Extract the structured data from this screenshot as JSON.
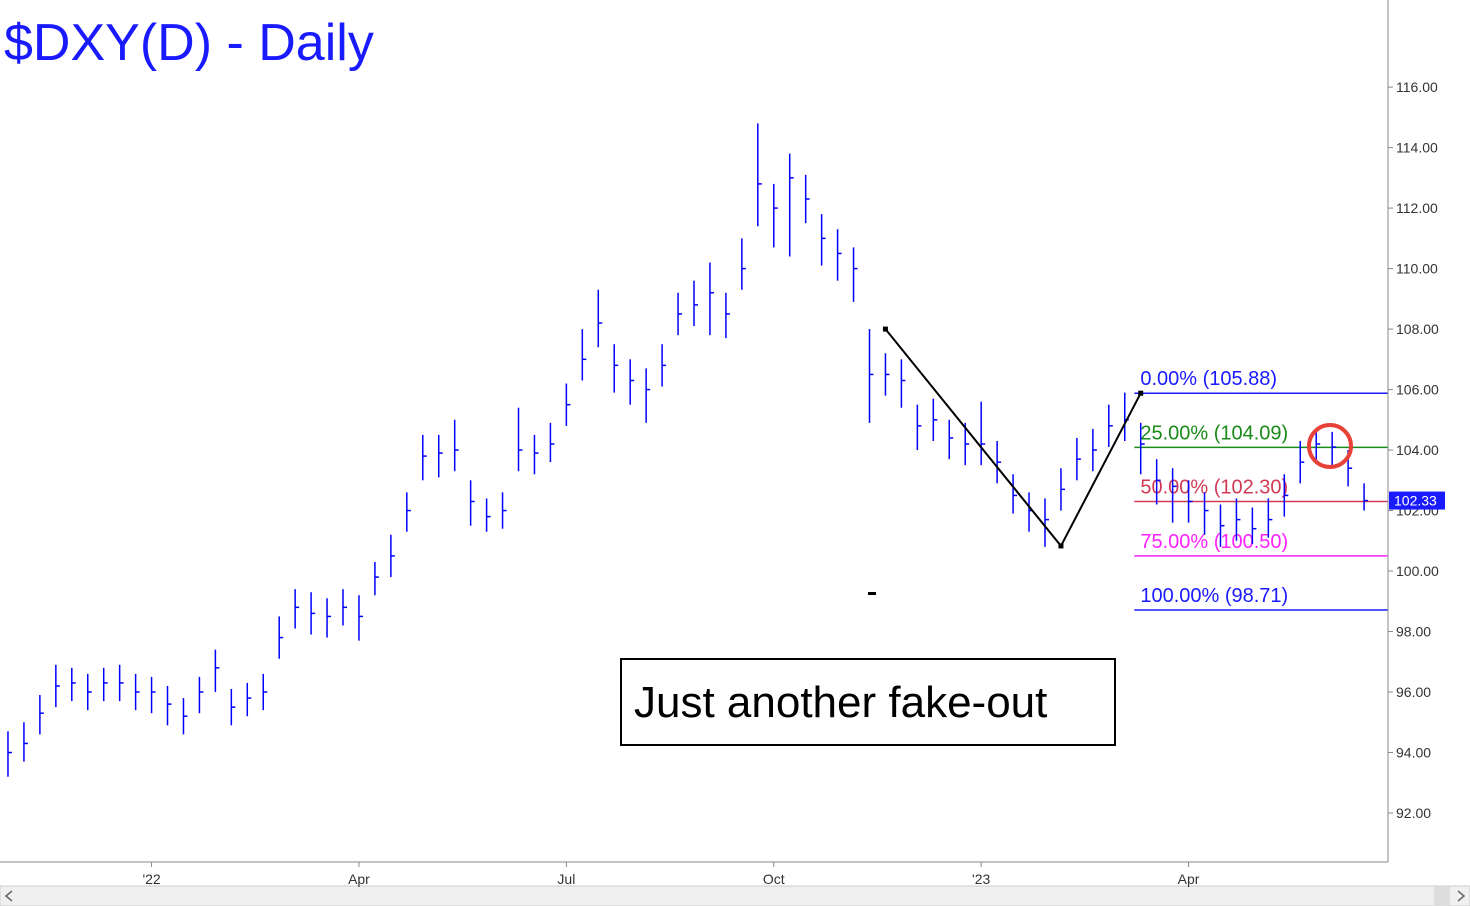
{
  "chart_data": {
    "type": "ohlc",
    "title": "$DXY(D) - Daily",
    "color": "#0000ff",
    "categories": [
      null,
      null,
      null,
      null,
      null,
      null,
      null,
      null,
      null,
      "'22",
      null,
      null,
      null,
      null,
      null,
      null,
      null,
      null,
      null,
      null,
      null,
      null,
      "Apr",
      null,
      null,
      null,
      null,
      null,
      null,
      null,
      null,
      null,
      null,
      null,
      null,
      "Jul",
      null,
      null,
      null,
      null,
      null,
      null,
      null,
      null,
      null,
      null,
      null,
      null,
      "Oct",
      null,
      null,
      null,
      null,
      null,
      null,
      null,
      null,
      null,
      null,
      null,
      null,
      "'23",
      null,
      null,
      null,
      null,
      null,
      null,
      null,
      null,
      null,
      null,
      null,
      null,
      "Apr",
      null,
      null,
      null,
      null,
      null,
      null,
      null,
      null,
      null,
      null,
      null
    ],
    "high": [
      94.7,
      95.0,
      95.9,
      96.9,
      96.8,
      96.6,
      96.8,
      96.9,
      96.6,
      96.5,
      96.2,
      95.8,
      96.5,
      97.4,
      96.1,
      96.3,
      96.6,
      98.5,
      99.4,
      99.3,
      99.1,
      99.4,
      99.2,
      100.3,
      101.2,
      102.6,
      104.5,
      104.5,
      105.0,
      103.0,
      102.4,
      102.6,
      105.4,
      104.5,
      104.9,
      106.2,
      108.0,
      109.3,
      107.5,
      107.0,
      106.7,
      107.5,
      109.2,
      109.6,
      110.2,
      109.2,
      111.0,
      114.8,
      112.8,
      113.8,
      113.1,
      111.8,
      111.3,
      110.7,
      108.0,
      107.2,
      107.0,
      105.5,
      105.7,
      105.0,
      104.9,
      105.6,
      104.3,
      103.2,
      102.6,
      102.4,
      103.4,
      104.4,
      104.7,
      105.5,
      105.9,
      104.9,
      103.7,
      103.4,
      103.0,
      102.6,
      102.2,
      102.4,
      102.1,
      102.4,
      103.2,
      104.3,
      104.7,
      104.6,
      104.0,
      102.9
    ],
    "low": [
      93.2,
      93.7,
      94.6,
      95.5,
      95.7,
      95.4,
      95.7,
      95.7,
      95.4,
      95.3,
      94.9,
      94.6,
      95.3,
      96.0,
      94.9,
      95.2,
      95.4,
      97.1,
      98.1,
      97.9,
      97.8,
      98.2,
      97.7,
      99.2,
      99.8,
      101.3,
      103.0,
      103.1,
      103.3,
      101.5,
      101.3,
      101.4,
      103.3,
      103.2,
      103.6,
      104.8,
      106.3,
      107.4,
      105.9,
      105.5,
      104.9,
      106.1,
      107.8,
      108.1,
      107.8,
      107.7,
      109.3,
      111.4,
      110.7,
      110.4,
      111.5,
      110.1,
      109.6,
      108.9,
      104.9,
      105.8,
      105.4,
      104.0,
      104.3,
      103.7,
      103.5,
      103.5,
      102.9,
      101.9,
      101.3,
      100.8,
      102.0,
      103.0,
      103.3,
      104.1,
      104.3,
      103.2,
      102.2,
      101.6,
      101.6,
      101.2,
      100.8,
      101.0,
      100.9,
      101.1,
      101.8,
      102.9,
      103.6,
      103.5,
      102.8,
      102.0
    ],
    "close": [
      94.0,
      94.3,
      95.3,
      96.2,
      96.3,
      96.0,
      96.3,
      96.3,
      96.0,
      96.0,
      95.6,
      95.2,
      96.0,
      96.8,
      95.5,
      95.8,
      96.0,
      97.8,
      98.8,
      98.6,
      98.5,
      98.8,
      98.5,
      99.8,
      100.5,
      102.0,
      103.8,
      103.9,
      104.0,
      102.3,
      101.8,
      102.0,
      104.0,
      103.9,
      104.2,
      105.5,
      107.0,
      108.2,
      106.8,
      106.3,
      106.0,
      106.8,
      108.5,
      108.8,
      109.2,
      108.5,
      110.0,
      112.8,
      112.0,
      113.0,
      112.3,
      111.0,
      110.5,
      110.0,
      106.5,
      106.5,
      106.3,
      104.8,
      105.0,
      104.4,
      104.2,
      104.2,
      103.6,
      102.5,
      102.0,
      101.7,
      102.7,
      103.7,
      104.0,
      104.8,
      105.0,
      104.2,
      103.0,
      102.8,
      102.3,
      102.0,
      101.5,
      101.7,
      101.4,
      101.7,
      102.5,
      103.6,
      104.2,
      104.1,
      103.4,
      102.33
    ],
    "ylim": [
      90.38,
      118.88
    ],
    "yticks": [
      {
        "value": 92,
        "label": "92.00"
      },
      {
        "value": 94,
        "label": "94.00"
      },
      {
        "value": 96,
        "label": "96.00"
      },
      {
        "value": 98,
        "label": "98.00"
      },
      {
        "value": 100,
        "label": "100.00"
      },
      {
        "value": 102,
        "label": "102.00"
      },
      {
        "value": 104,
        "label": "104.00"
      },
      {
        "value": 106,
        "label": "106.00"
      },
      {
        "value": 108,
        "label": "108.00"
      },
      {
        "value": 110,
        "label": "110.00"
      },
      {
        "value": 112,
        "label": "112.00"
      },
      {
        "value": 114,
        "label": "114.00"
      },
      {
        "value": 116,
        "label": "116.00"
      }
    ],
    "last_price": 102.33,
    "swing": [
      {
        "at": 55,
        "value": 108.0
      },
      {
        "at": 66,
        "value": 100.83
      },
      {
        "at": 71,
        "value": 105.88
      }
    ],
    "fib_levels": [
      {
        "label": "0.00% (105.88)",
        "value": 105.88,
        "color": "#1a1aff"
      },
      {
        "label": "25.00% (104.09)",
        "value": 104.09,
        "color": "#1a8a1a"
      },
      {
        "label": "50.00% (102.30)",
        "value": 102.3,
        "color": "#d03a55"
      },
      {
        "label": "75.00% (100.50)",
        "value": 100.5,
        "color": "#ff22ff"
      },
      {
        "label": "100.00% (98.71)",
        "value": 98.71,
        "color": "#1a1aff"
      }
    ],
    "annotation": "Just another fake-out"
  }
}
